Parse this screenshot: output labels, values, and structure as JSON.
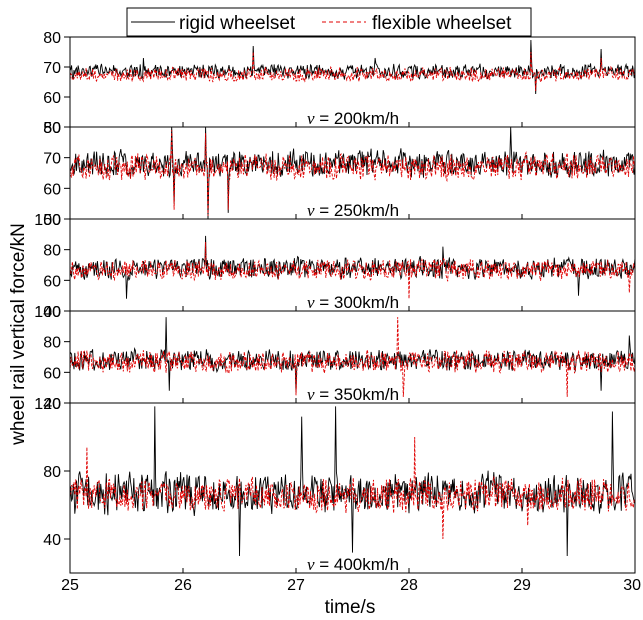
{
  "chart_data": {
    "type": "line",
    "legend": {
      "position": "top",
      "entries": [
        {
          "label": "rigid wheelset",
          "color": "#000000",
          "style": "solid"
        },
        {
          "label": "flexible wheelset",
          "color": "#e00000",
          "style": "dashed"
        }
      ]
    },
    "xlabel": "time/s",
    "ylabel": "wheel rail vertical force/kN",
    "xlim": [
      25,
      30
    ],
    "xticks": [
      "25",
      "26",
      "27",
      "28",
      "29",
      "30"
    ],
    "grid": false,
    "panels": [
      {
        "speed_prefix": "v",
        "speed_text": " = 200km/h",
        "ylim": [
          50,
          80
        ],
        "yticks": [
          "50",
          "60",
          "70",
          "80"
        ],
        "series": [
          {
            "name": "rigid wheelset",
            "mean": 68.5,
            "amp": 2.5,
            "seed": 11,
            "spikes": [
              [
                25.65,
                73
              ],
              [
                26.62,
                77
              ],
              [
                27.7,
                73
              ],
              [
                29.08,
                79
              ],
              [
                29.12,
                61
              ],
              [
                29.7,
                76
              ]
            ]
          },
          {
            "name": "flexible wheelset",
            "mean": 67.5,
            "amp": 2.4,
            "seed": 12,
            "spikes": [
              [
                26.62,
                75
              ],
              [
                29.08,
                75
              ],
              [
                29.12,
                62
              ],
              [
                29.7,
                73
              ]
            ]
          }
        ]
      },
      {
        "speed_prefix": "v",
        "speed_text": " = 250km/h",
        "ylim": [
          50,
          80
        ],
        "yticks": [
          "50",
          "60",
          "70",
          "80"
        ],
        "series": [
          {
            "name": "rigid wheelset",
            "mean": 68,
            "amp": 4.5,
            "seed": 21,
            "spikes": [
              [
                25.9,
                80
              ],
              [
                25.92,
                55
              ],
              [
                26.2,
                80
              ],
              [
                26.22,
                50
              ],
              [
                26.4,
                52
              ],
              [
                28.9,
                80
              ]
            ]
          },
          {
            "name": "flexible wheelset",
            "mean": 67,
            "amp": 4.3,
            "seed": 22,
            "spikes": [
              [
                25.9,
                79
              ],
              [
                25.92,
                53
              ],
              [
                26.2,
                78
              ],
              [
                26.22,
                51
              ],
              [
                26.4,
                53
              ]
            ]
          }
        ]
      },
      {
        "speed_prefix": "v",
        "speed_text": " = 300km/h",
        "ylim": [
          40,
          100
        ],
        "yticks": [
          "40",
          "60",
          "80",
          "100"
        ],
        "series": [
          {
            "name": "rigid wheelset",
            "mean": 68,
            "amp": 7,
            "seed": 31,
            "spikes": [
              [
                26.2,
                89
              ],
              [
                25.5,
                48
              ],
              [
                28.3,
                82
              ],
              [
                29.5,
                50
              ]
            ]
          },
          {
            "name": "flexible wheelset",
            "mean": 67,
            "amp": 6.8,
            "seed": 32,
            "spikes": [
              [
                26.2,
                85
              ],
              [
                28.0,
                48
              ],
              [
                29.95,
                52
              ]
            ]
          }
        ]
      },
      {
        "speed_prefix": "v",
        "speed_text": " = 350km/h",
        "ylim": [
          40,
          100
        ],
        "yticks": [
          "40",
          "60",
          "80",
          "100"
        ],
        "series": [
          {
            "name": "rigid wheelset",
            "mean": 68,
            "amp": 7,
            "seed": 41,
            "spikes": [
              [
                25.85,
                96
              ],
              [
                25.88,
                48
              ],
              [
                27.0,
                47
              ],
              [
                29.7,
                48
              ],
              [
                29.95,
                84
              ]
            ]
          },
          {
            "name": "flexible wheelset",
            "mean": 67,
            "amp": 7.5,
            "seed": 42,
            "spikes": [
              [
                27.0,
                45
              ],
              [
                27.9,
                96
              ],
              [
                27.95,
                44
              ],
              [
                29.4,
                44
              ]
            ]
          }
        ]
      },
      {
        "speed_prefix": "v",
        "speed_text": " = 400km/h",
        "ylim": [
          20,
          120
        ],
        "yticks": [
          "40",
          "80",
          "120"
        ],
        "series": [
          {
            "name": "rigid wheelset",
            "mean": 67,
            "amp": 12,
            "seed": 51,
            "spikes": [
              [
                25.75,
                118
              ],
              [
                26.5,
                30
              ],
              [
                27.05,
                112
              ],
              [
                27.35,
                118
              ],
              [
                27.5,
                32
              ],
              [
                29.4,
                30
              ],
              [
                29.8,
                115
              ]
            ]
          },
          {
            "name": "flexible wheelset",
            "mean": 66,
            "amp": 10,
            "seed": 52,
            "spikes": [
              [
                25.15,
                94
              ],
              [
                28.05,
                100
              ],
              [
                28.3,
                40
              ],
              [
                29.05,
                48
              ]
            ]
          }
        ]
      }
    ]
  }
}
